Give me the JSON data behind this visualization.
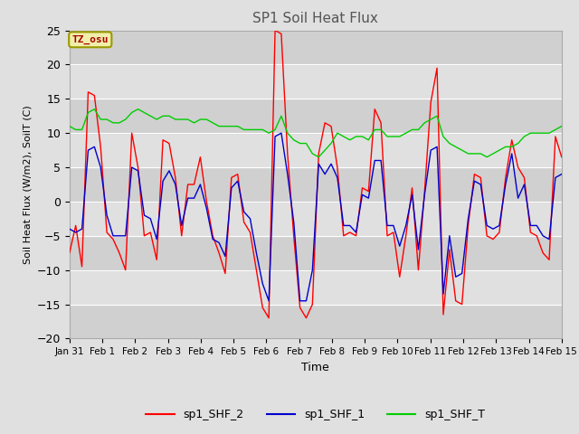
{
  "title": "SP1 Soil Heat Flux",
  "xlabel": "Time",
  "ylabel": "Soil Heat Flux (W/m2), SoilT (C)",
  "ylim": [
    -20,
    25
  ],
  "fig_bg_color": "#e0e0e0",
  "plot_bg_color": "#e0e0e0",
  "tz_label": "TZ_osu",
  "legend": [
    "sp1_SHF_2",
    "sp1_SHF_1",
    "sp1_SHF_T"
  ],
  "legend_colors": [
    "#ff0000",
    "#0000cc",
    "#00cc00"
  ],
  "xtick_labels": [
    "Jan 31",
    "Feb 1",
    "Feb 2",
    "Feb 3",
    "Feb 4",
    "Feb 5",
    "Feb 6",
    "Feb 7",
    "Feb 8",
    "Feb 9",
    "Feb 10",
    "Feb 11",
    "Feb 12",
    "Feb 13",
    "Feb 14",
    "Feb 15"
  ],
  "sp1_SHF_2": [
    -7.5,
    -3.5,
    -9.5,
    16.0,
    15.5,
    8.0,
    -4.5,
    -5.5,
    -7.5,
    -10.0,
    10.0,
    5.0,
    -5.0,
    -4.5,
    -8.5,
    9.0,
    8.5,
    3.5,
    -5.0,
    2.5,
    2.5,
    6.5,
    0.0,
    -5.0,
    -7.5,
    -10.5,
    3.5,
    4.0,
    -3.0,
    -4.5,
    -10.0,
    -15.5,
    -17.0,
    25.0,
    24.5,
    7.0,
    -5.0,
    -15.5,
    -17.0,
    -15.0,
    7.0,
    11.5,
    11.0,
    5.0,
    -5.0,
    -4.5,
    -5.0,
    2.0,
    1.5,
    13.5,
    11.5,
    -5.0,
    -4.5,
    -11.0,
    -5.0,
    2.0,
    -10.0,
    1.5,
    14.5,
    19.5,
    -16.5,
    -7.0,
    -14.5,
    -15.0,
    -3.5,
    4.0,
    3.5,
    -5.0,
    -5.5,
    -4.5,
    3.5,
    9.0,
    5.0,
    3.5,
    -4.5,
    -5.0,
    -7.5,
    -8.5,
    9.5,
    6.5
  ],
  "sp1_SHF_1": [
    -4.0,
    -4.5,
    -4.0,
    7.5,
    8.0,
    5.0,
    -2.0,
    -5.0,
    -5.0,
    -5.0,
    5.0,
    4.5,
    -2.0,
    -2.5,
    -5.5,
    3.0,
    4.5,
    2.5,
    -3.5,
    0.5,
    0.5,
    2.5,
    -1.0,
    -5.5,
    -6.0,
    -8.0,
    2.0,
    3.0,
    -1.5,
    -2.5,
    -7.5,
    -12.0,
    -14.5,
    9.5,
    10.0,
    4.0,
    -3.0,
    -14.5,
    -14.5,
    -10.0,
    5.5,
    4.0,
    5.5,
    3.5,
    -3.5,
    -3.5,
    -4.5,
    1.0,
    0.5,
    6.0,
    6.0,
    -3.5,
    -3.5,
    -6.5,
    -3.5,
    1.0,
    -7.0,
    1.0,
    7.5,
    8.0,
    -13.5,
    -5.0,
    -11.0,
    -10.5,
    -2.5,
    3.0,
    2.5,
    -3.5,
    -4.0,
    -3.5,
    2.5,
    7.0,
    0.5,
    2.5,
    -3.5,
    -3.5,
    -5.0,
    -5.5,
    3.5,
    4.0
  ],
  "sp1_SHF_T": [
    11.0,
    10.5,
    10.5,
    13.0,
    13.5,
    12.0,
    12.0,
    11.5,
    11.5,
    12.0,
    13.0,
    13.5,
    13.0,
    12.5,
    12.0,
    12.5,
    12.5,
    12.0,
    12.0,
    12.0,
    11.5,
    12.0,
    12.0,
    11.5,
    11.0,
    11.0,
    11.0,
    11.0,
    10.5,
    10.5,
    10.5,
    10.5,
    10.0,
    10.5,
    12.5,
    10.0,
    9.0,
    8.5,
    8.5,
    7.0,
    6.5,
    7.5,
    8.5,
    10.0,
    9.5,
    9.0,
    9.5,
    9.5,
    9.0,
    10.5,
    10.5,
    9.5,
    9.5,
    9.5,
    10.0,
    10.5,
    10.5,
    11.5,
    12.0,
    12.5,
    9.5,
    8.5,
    8.0,
    7.5,
    7.0,
    7.0,
    7.0,
    6.5,
    7.0,
    7.5,
    8.0,
    8.0,
    8.5,
    9.5,
    10.0,
    10.0,
    10.0,
    10.0,
    10.5,
    11.0
  ],
  "band_colors": [
    "#d0d0d0",
    "#e0e0e0",
    "#d0d0d0",
    "#e0e0e0",
    "#d0d0d0",
    "#e0e0e0",
    "#d0d0d0",
    "#e0e0e0",
    "#d0d0d0"
  ],
  "band_edges": [
    -20,
    -15,
    -10,
    -5,
    0,
    5,
    10,
    15,
    20,
    25
  ]
}
